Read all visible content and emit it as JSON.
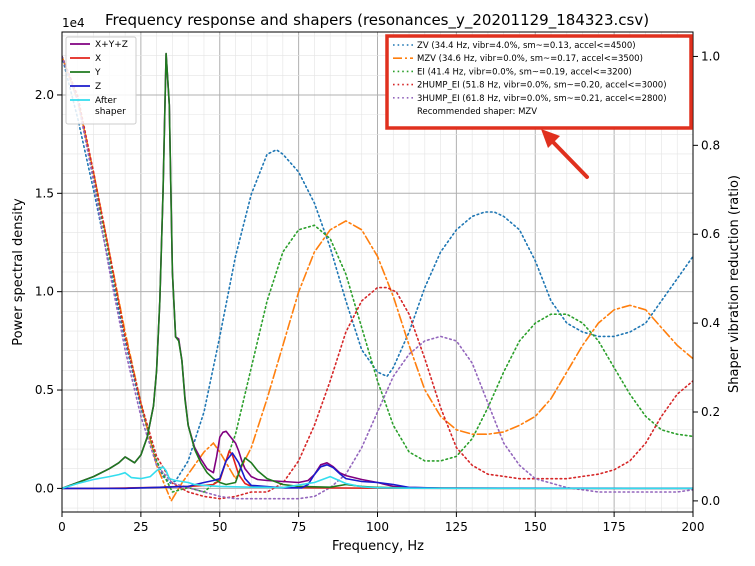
{
  "chart_data": {
    "type": "line",
    "title": "Frequency response and shapers (resonances_y_20201129_184323.csv)",
    "xlabel": "Frequency, Hz",
    "ylabel": "Power spectral density",
    "y2label": "Shaper vibration reduction (ratio)",
    "y_exponent_label": "1e4",
    "xlim": [
      0,
      200
    ],
    "ylim": [
      -1200,
      23200
    ],
    "y2lim": [
      -0.025,
      1.055
    ],
    "grid": true,
    "x_ticks": [
      0,
      25,
      50,
      75,
      100,
      125,
      150,
      175,
      200
    ],
    "x_tick_labels": [
      "0",
      "25",
      "50",
      "75",
      "100",
      "125",
      "150",
      "175",
      "200"
    ],
    "y_ticks": [
      0,
      5000,
      10000,
      15000,
      20000
    ],
    "y_tick_labels": [
      "0.0",
      "0.5",
      "1.0",
      "1.5",
      "2.0"
    ],
    "y2_ticks": [
      0,
      0.2,
      0.4,
      0.6,
      0.8,
      1.0
    ],
    "y2_tick_labels": [
      "0.0",
      "0.2",
      "0.4",
      "0.6",
      "0.8",
      "1.0"
    ],
    "psd_series": [
      {
        "name": "X+Y+Z",
        "color": "#800080",
        "style": "solid",
        "x": [
          0,
          5,
          10,
          15,
          18,
          20,
          23,
          25,
          27,
          29,
          30,
          31,
          32,
          33,
          34,
          35,
          36,
          37,
          38,
          39,
          40,
          42,
          44,
          46,
          48,
          49,
          50,
          51,
          52,
          53,
          54,
          55,
          56,
          57,
          58,
          60,
          62,
          65,
          70,
          75,
          78,
          80,
          82,
          84,
          86,
          88,
          90,
          95,
          100,
          105,
          110,
          120,
          140,
          160,
          180,
          200
        ],
        "y": [
          0,
          300,
          600,
          1000,
          1300,
          1600,
          1300,
          1700,
          2600,
          4200,
          6000,
          9500,
          15000,
          22100,
          19500,
          11000,
          7700,
          7600,
          6500,
          4600,
          3200,
          2100,
          1500,
          1000,
          800,
          1600,
          2600,
          2850,
          2900,
          2700,
          2500,
          2300,
          1900,
          1400,
          1000,
          600,
          450,
          400,
          350,
          300,
          400,
          700,
          1200,
          1300,
          1100,
          800,
          650,
          450,
          300,
          100,
          50,
          20,
          10,
          10,
          10,
          10
        ]
      },
      {
        "name": "X",
        "color": "#e3241c",
        "style": "solid",
        "x": [
          0,
          10,
          20,
          30,
          35,
          40,
          45,
          48,
          50,
          51,
          52,
          53,
          54,
          55,
          56,
          58,
          60,
          70,
          80,
          90,
          100,
          120,
          150,
          200
        ],
        "y": [
          0,
          0,
          20,
          50,
          80,
          100,
          150,
          200,
          400,
          900,
          1400,
          1900,
          1700,
          1200,
          700,
          250,
          100,
          40,
          30,
          20,
          10,
          5,
          5,
          5
        ]
      },
      {
        "name": "Y",
        "color": "#1f7a1f",
        "style": "solid",
        "x": [
          0,
          5,
          10,
          15,
          18,
          20,
          23,
          25,
          27,
          29,
          30,
          31,
          32,
          33,
          34,
          35,
          36,
          37,
          38,
          39,
          40,
          42,
          44,
          46,
          48,
          50,
          52,
          55,
          57,
          58,
          60,
          62,
          65,
          70,
          75,
          80,
          85,
          90,
          95,
          100,
          110,
          120,
          140,
          160,
          180,
          200
        ],
        "y": [
          0,
          300,
          600,
          1000,
          1300,
          1600,
          1300,
          1700,
          2600,
          4200,
          6000,
          9500,
          15000,
          22100,
          19500,
          11000,
          7700,
          7500,
          6500,
          4500,
          3200,
          2000,
          1300,
          800,
          500,
          300,
          200,
          300,
          1200,
          1550,
          1300,
          900,
          500,
          200,
          100,
          80,
          60,
          200,
          100,
          50,
          20,
          10,
          5,
          5,
          5,
          5
        ]
      },
      {
        "name": "Z",
        "color": "#1a1acc",
        "style": "solid",
        "x": [
          0,
          20,
          40,
          45,
          48,
          50,
          52,
          54,
          56,
          58,
          60,
          70,
          76,
          78,
          80,
          82,
          84,
          86,
          88,
          90,
          95,
          100,
          105,
          110,
          120,
          200
        ],
        "y": [
          0,
          0,
          100,
          300,
          400,
          500,
          1400,
          1800,
          1300,
          500,
          150,
          30,
          30,
          200,
          700,
          1100,
          1200,
          1050,
          750,
          500,
          350,
          300,
          200,
          50,
          10,
          5
        ]
      },
      {
        "name": "After\nshaper",
        "color": "#33ddee",
        "style": "solid",
        "x": [
          0,
          5,
          10,
          15,
          18,
          20,
          22,
          25,
          28,
          30,
          32,
          33,
          34,
          36,
          38,
          40,
          42,
          45,
          50,
          55,
          60,
          70,
          80,
          85,
          90,
          95,
          100,
          110,
          120,
          150,
          200
        ],
        "y": [
          0,
          250,
          450,
          600,
          700,
          800,
          550,
          500,
          600,
          900,
          1100,
          900,
          500,
          400,
          350,
          300,
          200,
          150,
          100,
          80,
          60,
          40,
          300,
          600,
          250,
          80,
          30,
          10,
          5,
          5,
          5
        ]
      }
    ],
    "shaper_series": [
      {
        "name": "ZV (34.4 Hz, vibr=4.0%, sm~=0.13, accel<=4500)",
        "color": "#1f77b4",
        "style": "dotted",
        "x": [
          0,
          5,
          10,
          15,
          20,
          25,
          30,
          32,
          34.4,
          36,
          40,
          45,
          50,
          55,
          60,
          65,
          68,
          70,
          75,
          80,
          85,
          90,
          95,
          100,
          103,
          105,
          110,
          115,
          120,
          125,
          130,
          134,
          137,
          140,
          145,
          150,
          155,
          160,
          165,
          170,
          175,
          180,
          185,
          190,
          195,
          200
        ],
        "y": [
          1.0,
          0.86,
          0.7,
          0.53,
          0.36,
          0.21,
          0.09,
          0.055,
          0.04,
          0.045,
          0.09,
          0.2,
          0.37,
          0.55,
          0.69,
          0.78,
          0.79,
          0.78,
          0.74,
          0.67,
          0.57,
          0.45,
          0.34,
          0.29,
          0.28,
          0.3,
          0.38,
          0.48,
          0.56,
          0.61,
          0.64,
          0.65,
          0.65,
          0.64,
          0.61,
          0.54,
          0.45,
          0.4,
          0.38,
          0.37,
          0.37,
          0.38,
          0.4,
          0.45,
          0.5,
          0.55
        ]
      },
      {
        "name": "MZV (34.6 Hz, vibr=0.0%, sm~=0.17, accel<=3500)",
        "color": "#ff7f0e",
        "style": "dashdot",
        "x": [
          0,
          5,
          10,
          15,
          20,
          25,
          30,
          34.6,
          38,
          42,
          45,
          48,
          50,
          55,
          60,
          65,
          70,
          75,
          80,
          85,
          90,
          95,
          100,
          105,
          110,
          115,
          120,
          125,
          130,
          135,
          140,
          145,
          150,
          155,
          160,
          165,
          170,
          175,
          180,
          185,
          190,
          195,
          200
        ],
        "y": [
          1.0,
          0.9,
          0.74,
          0.56,
          0.38,
          0.22,
          0.08,
          0.0,
          0.04,
          0.08,
          0.11,
          0.13,
          0.11,
          0.05,
          0.12,
          0.23,
          0.35,
          0.47,
          0.56,
          0.61,
          0.63,
          0.61,
          0.55,
          0.46,
          0.35,
          0.25,
          0.19,
          0.16,
          0.15,
          0.15,
          0.155,
          0.17,
          0.19,
          0.23,
          0.29,
          0.35,
          0.4,
          0.43,
          0.44,
          0.43,
          0.39,
          0.35,
          0.32
        ]
      },
      {
        "name": "EI (41.4 Hz, vibr=0.0%, sm~=0.19, accel<=3200)",
        "color": "#2ca02c",
        "style": "dotted",
        "x": [
          0,
          5,
          10,
          15,
          20,
          25,
          30,
          35,
          40,
          45,
          50,
          55,
          60,
          65,
          70,
          75,
          80,
          85,
          90,
          95,
          100,
          105,
          110,
          115,
          120,
          125,
          130,
          135,
          140,
          145,
          150,
          155,
          160,
          165,
          170,
          175,
          180,
          185,
          190,
          195,
          200
        ],
        "y": [
          1.0,
          0.9,
          0.73,
          0.55,
          0.37,
          0.22,
          0.09,
          0.02,
          0.03,
          0.02,
          0.05,
          0.15,
          0.3,
          0.45,
          0.56,
          0.61,
          0.62,
          0.59,
          0.51,
          0.39,
          0.27,
          0.17,
          0.11,
          0.09,
          0.09,
          0.1,
          0.14,
          0.21,
          0.29,
          0.36,
          0.4,
          0.42,
          0.42,
          0.4,
          0.36,
          0.3,
          0.24,
          0.19,
          0.16,
          0.15,
          0.145
        ]
      },
      {
        "name": "2HUMP_EI (51.8 Hz, vibr=0.0%, sm~=0.20, accel<=3000)",
        "color": "#d62728",
        "style": "dotted",
        "x": [
          0,
          5,
          10,
          15,
          20,
          25,
          30,
          35,
          40,
          45,
          50,
          55,
          60,
          65,
          70,
          75,
          80,
          85,
          90,
          95,
          100,
          103,
          106,
          110,
          115,
          120,
          125,
          130,
          135,
          140,
          145,
          150,
          155,
          160,
          165,
          170,
          175,
          180,
          185,
          190,
          195,
          200
        ],
        "y": [
          1.0,
          0.91,
          0.74,
          0.56,
          0.37,
          0.22,
          0.1,
          0.04,
          0.02,
          0.01,
          0.005,
          0.01,
          0.02,
          0.02,
          0.04,
          0.09,
          0.17,
          0.27,
          0.38,
          0.45,
          0.48,
          0.48,
          0.47,
          0.42,
          0.32,
          0.21,
          0.12,
          0.08,
          0.06,
          0.055,
          0.05,
          0.05,
          0.05,
          0.05,
          0.055,
          0.06,
          0.07,
          0.09,
          0.13,
          0.19,
          0.24,
          0.27
        ]
      },
      {
        "name": "3HUMP_EI (61.8 Hz, vibr=0.0%, sm~=0.21, accel<=2800)",
        "color": "#9467bd",
        "style": "dotted",
        "x": [
          0,
          5,
          10,
          15,
          20,
          25,
          30,
          35,
          40,
          45,
          50,
          55,
          60,
          65,
          70,
          75,
          80,
          85,
          90,
          95,
          100,
          105,
          110,
          115,
          120,
          125,
          130,
          135,
          140,
          145,
          150,
          155,
          160,
          165,
          170,
          175,
          180,
          185,
          190,
          195,
          200
        ],
        "y": [
          1.0,
          0.9,
          0.72,
          0.52,
          0.34,
          0.19,
          0.08,
          0.04,
          0.03,
          0.02,
          0.01,
          0.005,
          0.005,
          0.005,
          0.005,
          0.005,
          0.01,
          0.03,
          0.06,
          0.12,
          0.2,
          0.28,
          0.33,
          0.36,
          0.37,
          0.36,
          0.31,
          0.22,
          0.13,
          0.08,
          0.05,
          0.04,
          0.03,
          0.025,
          0.02,
          0.02,
          0.02,
          0.02,
          0.02,
          0.02,
          0.025
        ]
      }
    ],
    "legend_left": {
      "placement": "upper-left"
    },
    "legend_right": {
      "placement": "upper-right",
      "footer": "Recommended shaper: MZV",
      "highlight_color": "#e0301e"
    },
    "annotation_arrow_color": "#e0301e"
  }
}
